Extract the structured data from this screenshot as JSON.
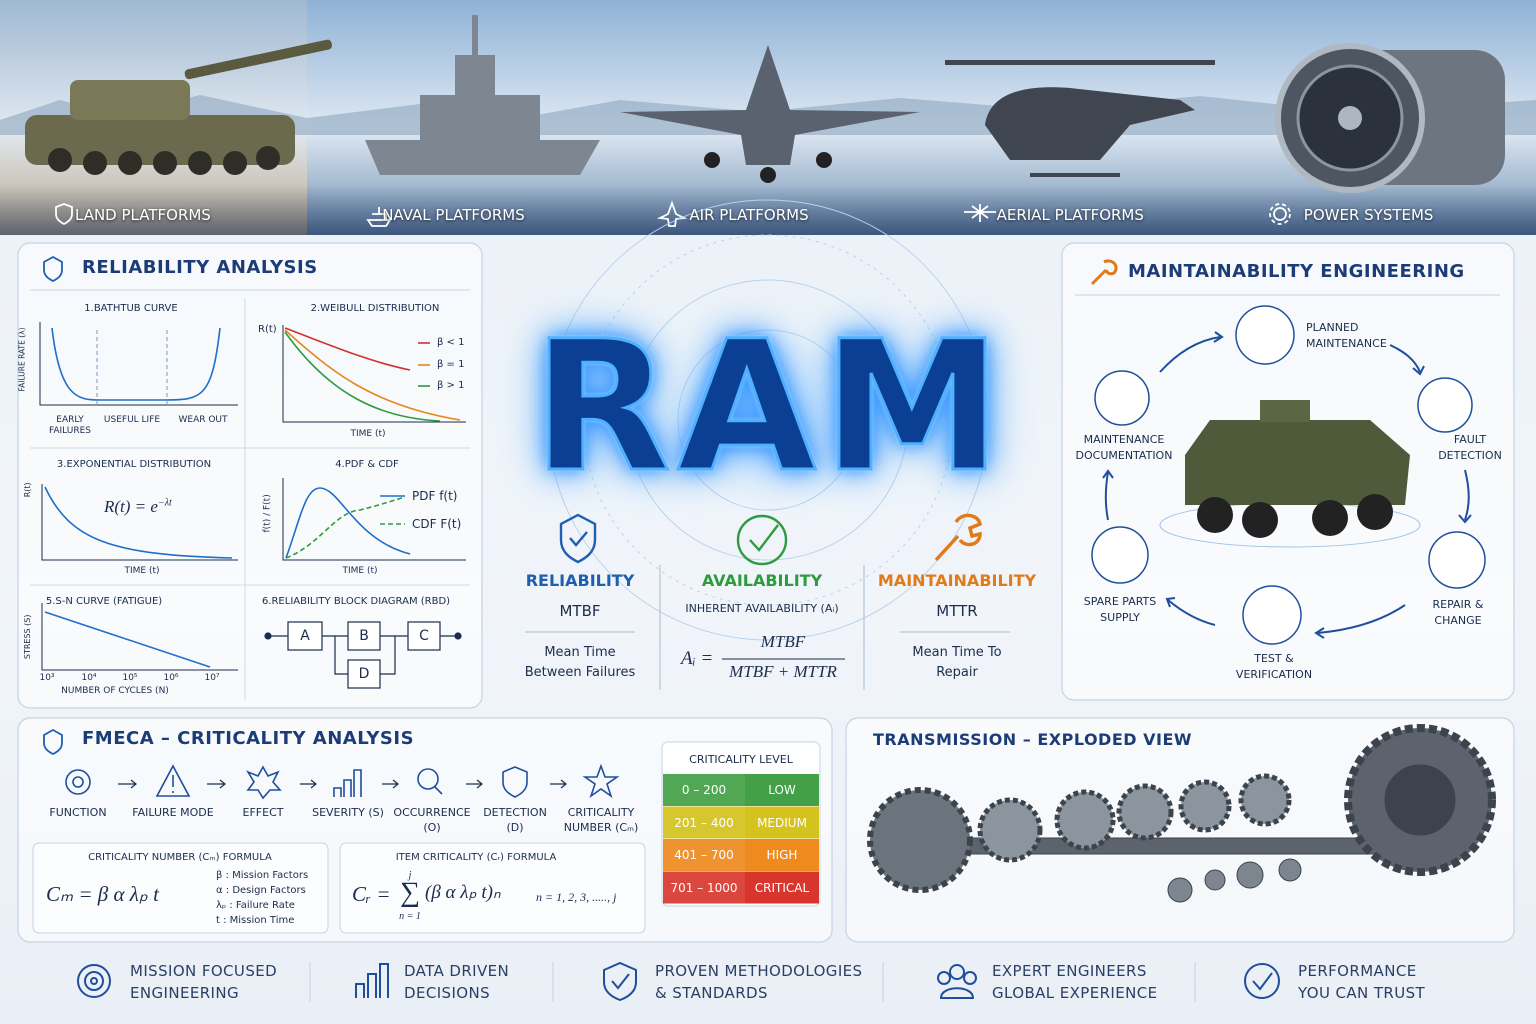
{
  "platforms": [
    "LAND PLATFORMS",
    "NAVAL PLATFORMS",
    "AIR PLATFORMS",
    "AERIAL PLATFORMS",
    "POWER SYSTEMS"
  ],
  "reliability": {
    "title": "RELIABILITY ANALYSIS",
    "bathtub": {
      "title": "1.BATHTUB CURVE",
      "y_label": "FAILURE RATE (λ)",
      "phases": [
        "EARLY FAILURES",
        "USEFUL LIFE",
        "WEAR OUT"
      ]
    },
    "weibull": {
      "title": "2.WEIBULL DISTRIBUTION",
      "y_label": "R(t)",
      "x_label": "TIME (t)",
      "legend": [
        "β < 1",
        "β = 1",
        "β > 1"
      ]
    },
    "exponential": {
      "title": "3.EXPONENTIAL DISTRIBUTION",
      "y_label": "R(t)",
      "formula": "R(t) = e",
      "formula_sup": "−λt",
      "x_label": "TIME (t)"
    },
    "pdf_cdf": {
      "title": "4.PDF & CDF",
      "y_label": "f(t) / F(t)",
      "legend": [
        "PDF f(t)",
        "CDF F(t)"
      ],
      "x_label": "TIME (t)"
    },
    "sn_curve": {
      "title": "5.S-N CURVE (FATIGUE)",
      "y_label": "STRESS (S)",
      "ticks": [
        "10³",
        "10⁴",
        "10⁵",
        "10⁶",
        "10⁷"
      ],
      "x_label": "NUMBER OF CYCLES (N)"
    },
    "rbd": {
      "title": "6.RELIABILITY BLOCK DIAGRAM (RBD)",
      "blocks": [
        "A",
        "B",
        "C",
        "D"
      ]
    }
  },
  "ram": {
    "title": "RAM",
    "pillars": [
      {
        "name": "RELIABILITY",
        "color": "#1f5fb0",
        "metric": "MTBF",
        "description": "Mean Time Between Failures"
      },
      {
        "name": "AVAILABILITY",
        "color": "#2e9b3e",
        "metric": "INHERENT AVAILABILITY (Aᵢ)",
        "formula_lhs": "Aᵢ =",
        "numerator": "MTBF",
        "denominator": "MTBF + MTTR"
      },
      {
        "name": "MAINTAINABILITY",
        "color": "#e07b1a",
        "metric": "MTTR",
        "description": "Mean Time To Repair"
      }
    ]
  },
  "maintainability": {
    "title": "MAINTAINABILITY ENGINEERING",
    "steps": [
      "PLANNED MAINTENANCE",
      "FAULT DETECTION",
      "REPAIR & CHANGE",
      "TEST & VERIFICATION",
      "SPARE PARTS SUPPLY",
      "MAINTENANCE DOCUMENTATION"
    ]
  },
  "fmeca": {
    "title": "FMECA – CRITICALITY ANALYSIS",
    "steps": [
      "FUNCTION",
      "FAILURE MODE",
      "EFFECT",
      "SEVERITY (S)",
      "OCCURRENCE (O)",
      "DETECTION (D)",
      "CRITICALITY NUMBER (Cₘ)"
    ],
    "criticality_formula": {
      "title": "CRITICALITY NUMBER (Cₘ) FORMULA",
      "formula": "Cₘ = β α λₚ  t",
      "legend": [
        "β : Mission Factors",
        "α : Design Factors",
        "λₚ : Failure Rate",
        "t : Mission Time"
      ]
    },
    "item_formula": {
      "title": "ITEM CRITICALITY (Cᵣ) FORMULA",
      "lhs": "Cᵣ =",
      "sum_top": "j",
      "sum_bottom": "n = 1",
      "body": "(β α λₚ t)ₙ",
      "range": "n = 1, 2, 3, ....., j"
    },
    "table": {
      "header": "CRITICALITY LEVEL",
      "rows": [
        {
          "range": "0 – 200",
          "level": "LOW",
          "color": "#43a047"
        },
        {
          "range": "201 – 400",
          "level": "MEDIUM",
          "color": "#d4c21d"
        },
        {
          "range": "401 – 700",
          "level": "HIGH",
          "color": "#ee8a1e"
        },
        {
          "range": "701 – 1000",
          "level": "CRITICAL",
          "color": "#d8362c"
        }
      ]
    }
  },
  "transmission": {
    "title": "TRANSMISSION – EXPLODED VIEW"
  },
  "footer": [
    [
      "MISSION FOCUSED",
      "ENGINEERING"
    ],
    [
      "DATA DRIVEN",
      "DECISIONS"
    ],
    [
      "PROVEN METHODOLOGIES",
      "& STANDARDS"
    ],
    [
      "EXPERT ENGINEERS",
      "GLOBAL EXPERIENCE"
    ],
    [
      "PERFORMANCE",
      "YOU CAN TRUST"
    ]
  ]
}
